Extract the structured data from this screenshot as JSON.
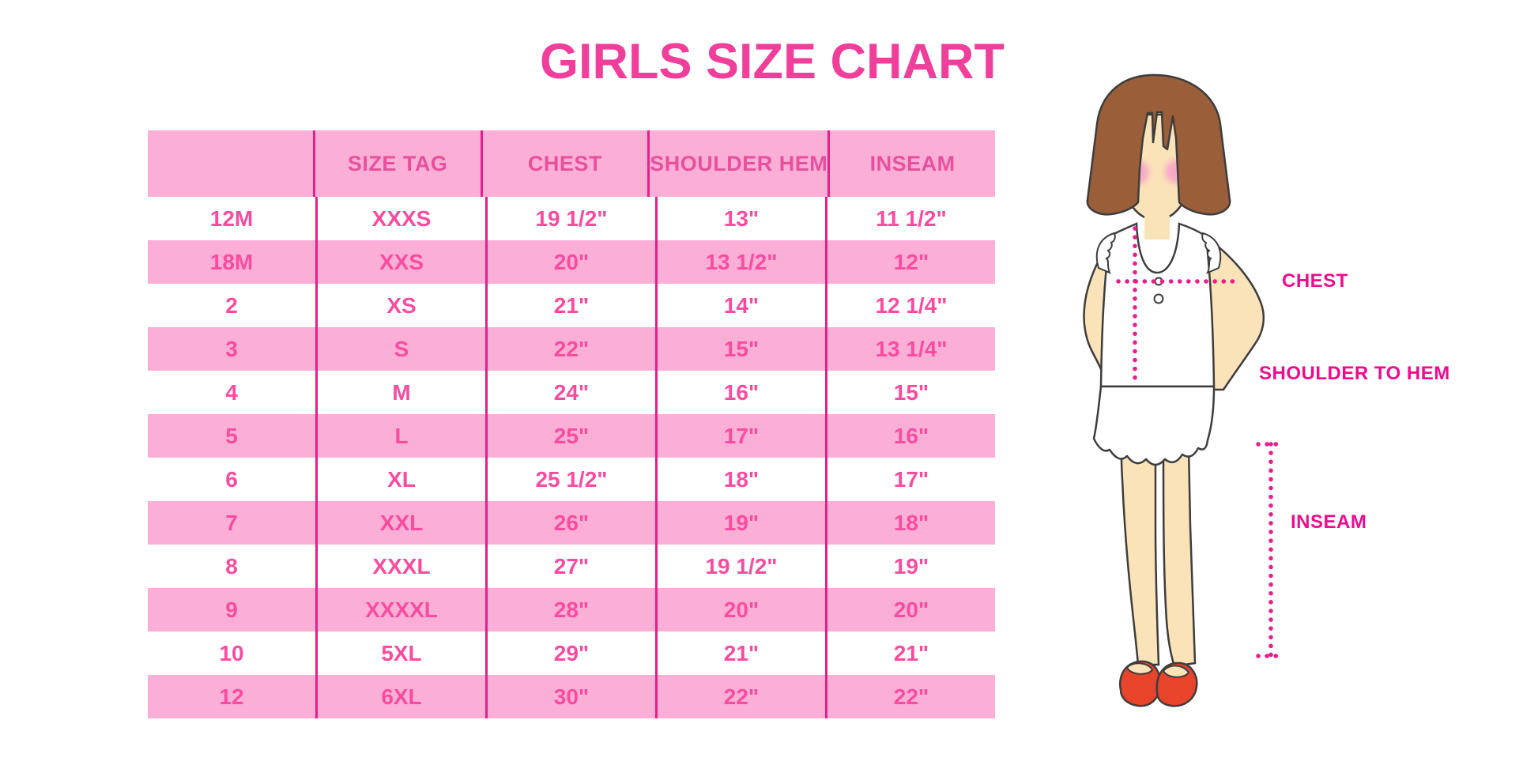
{
  "page": {
    "title": "GIRLS SIZE CHART"
  },
  "colors": {
    "title_pink": "#EF3F9B",
    "row_pink": "#FBAFD6",
    "column_line_magenta": "#E0218A",
    "header_text_pink": "#E8509E",
    "cell_text_pink": "#F94CA0",
    "measure_label_magenta": "#ED0C8F",
    "dotted_line_magenta": "#EC1C8F",
    "hair_brown": "#9A5E38",
    "skin_tone": "#FBE3B9",
    "blush_pink": "#F5A9C6",
    "shoe_red": "#E8432B"
  },
  "figure": {
    "illustration": "girl-with-measurement-lines",
    "labels": {
      "chest": "CHEST",
      "shoulder_to_hem": "SHOULDER TO HEM",
      "inseam": "INSEAM"
    }
  },
  "chart_data": {
    "type": "table",
    "title": "GIRLS SIZE CHART",
    "columns": [
      "",
      "SIZE TAG",
      "CHEST",
      "SHOULDER HEM",
      "INSEAM"
    ],
    "rows": [
      [
        "12M",
        "XXXS",
        "19 1/2\"",
        "13\"",
        "11 1/2\""
      ],
      [
        "18M",
        "XXS",
        "20\"",
        "13 1/2\"",
        "12\""
      ],
      [
        "2",
        "XS",
        "21\"",
        "14\"",
        "12 1/4\""
      ],
      [
        "3",
        "S",
        "22\"",
        "15\"",
        "13 1/4\""
      ],
      [
        "4",
        "M",
        "24\"",
        "16\"",
        "15\""
      ],
      [
        "5",
        "L",
        "25\"",
        "17\"",
        "16\""
      ],
      [
        "6",
        "XL",
        "25 1/2\"",
        "18\"",
        "17\""
      ],
      [
        "7",
        "XXL",
        "26\"",
        "19\"",
        "18\""
      ],
      [
        "8",
        "XXXL",
        "27\"",
        "19 1/2\"",
        "19\""
      ],
      [
        "9",
        "XXXXL",
        "28\"",
        "20\"",
        "20\""
      ],
      [
        "10",
        "5XL",
        "29\"",
        "21\"",
        "21\""
      ],
      [
        "12",
        "6XL",
        "30\"",
        "22\"",
        "22\""
      ]
    ],
    "row_striping": "white / pink alternating, first data row white",
    "legend_position": "none",
    "grid": "vertical magenta column separators only"
  }
}
